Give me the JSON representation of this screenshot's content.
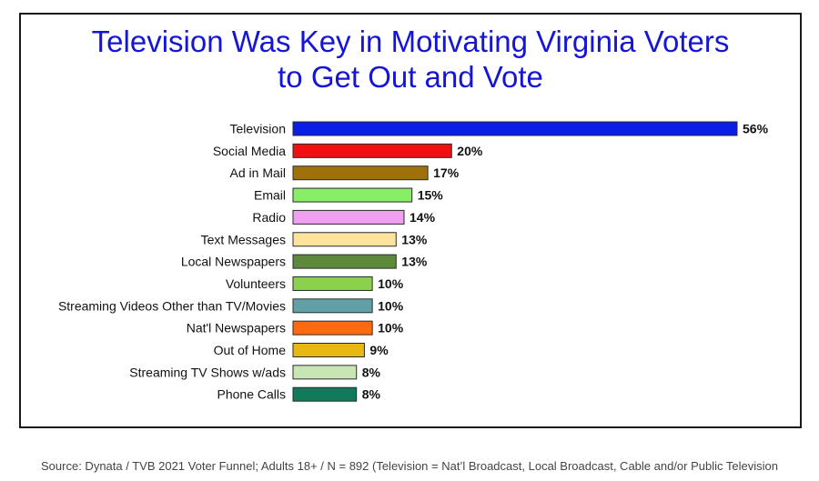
{
  "chart_data": {
    "type": "bar",
    "orientation": "horizontal",
    "title_lines": [
      "Television Was Key in Motivating Virginia Voters",
      "to Get Out and Vote"
    ],
    "categories": [
      "Television",
      "Social Media",
      "Ad in Mail",
      "Email",
      "Radio",
      "Text Messages",
      "Local Newspapers",
      "Volunteers",
      "Streaming Videos Other than TV/Movies",
      "Nat'l Newspapers",
      "Out of Home",
      "Streaming TV Shows w/ads",
      "Phone Calls"
    ],
    "values": [
      56,
      20,
      17,
      15,
      14,
      13,
      13,
      10,
      10,
      10,
      9,
      8,
      8
    ],
    "value_labels": [
      "56%",
      "20%",
      "17%",
      "15%",
      "14%",
      "13%",
      "13%",
      "10%",
      "10%",
      "10%",
      "9%",
      "8%",
      "8%"
    ],
    "colors": [
      "#0a1ee6",
      "#f01010",
      "#a0700a",
      "#88ee66",
      "#f0a0f0",
      "#ffe39a",
      "#5c8a3a",
      "#8cd050",
      "#62a0a8",
      "#ff6a10",
      "#e6b810",
      "#c8e6b4",
      "#107a5a"
    ],
    "xlim": [
      0,
      56
    ],
    "grid": false,
    "legend": "none"
  },
  "source_note": "Source: Dynata / TVB 2021 Voter Funnel; Adults 18+ / N = 892 (Television = Nat’l Broadcast, Local Broadcast, Cable and/or Public Television"
}
